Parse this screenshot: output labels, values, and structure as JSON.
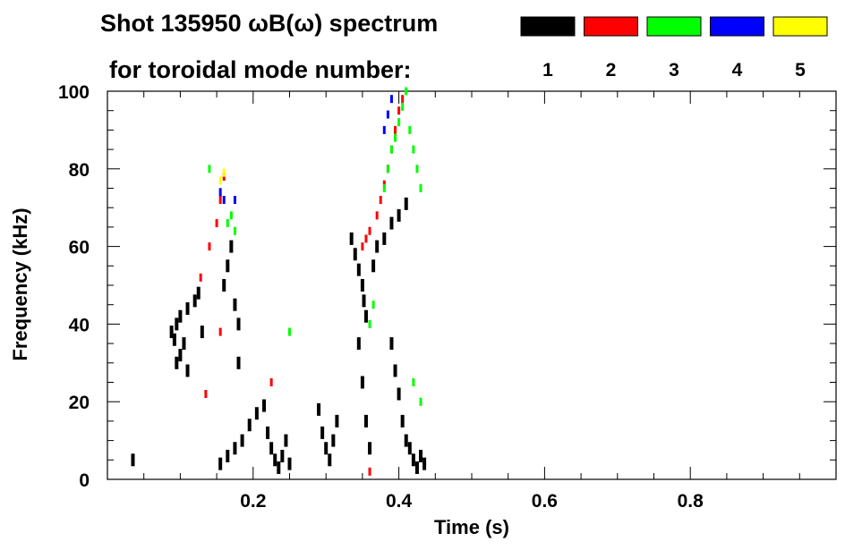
{
  "chart_data": {
    "type": "heatmap",
    "title_line1": "Shot 135950 ωB(ω) spectrum",
    "title_line2": "for toroidal mode number:",
    "xlabel": "Time (s)",
    "ylabel": "Frequency (kHz)",
    "xlim": [
      0.0,
      1.0
    ],
    "ylim": [
      0,
      100
    ],
    "xticks": [
      0.2,
      0.4,
      0.6,
      0.8
    ],
    "xtick_labels": [
      "0.2",
      "0.4",
      "0.6",
      "0.8"
    ],
    "yticks": [
      0,
      20,
      40,
      60,
      80,
      100
    ],
    "ytick_labels": [
      "0",
      "20",
      "40",
      "60",
      "80",
      "100"
    ],
    "grid": false,
    "legend_position": "top-right",
    "legend": [
      {
        "label": "1",
        "color": "#000000"
      },
      {
        "label": "2",
        "color": "#ff0000"
      },
      {
        "label": "3",
        "color": "#00ff00"
      },
      {
        "label": "4",
        "color": "#0000ff"
      },
      {
        "label": "5",
        "color": "#ffff00"
      }
    ],
    "series": [
      {
        "name": "1",
        "color": "#000000",
        "points": [
          [
            0.035,
            5
          ],
          [
            0.088,
            38
          ],
          [
            0.095,
            40
          ],
          [
            0.1,
            42
          ],
          [
            0.11,
            44
          ],
          [
            0.12,
            46
          ],
          [
            0.125,
            48
          ],
          [
            0.092,
            36
          ],
          [
            0.105,
            35
          ],
          [
            0.13,
            38
          ],
          [
            0.095,
            30
          ],
          [
            0.1,
            32
          ],
          [
            0.11,
            28
          ],
          [
            0.155,
            4
          ],
          [
            0.165,
            6
          ],
          [
            0.175,
            8
          ],
          [
            0.185,
            10
          ],
          [
            0.195,
            14
          ],
          [
            0.205,
            17
          ],
          [
            0.215,
            19
          ],
          [
            0.16,
            50
          ],
          [
            0.165,
            55
          ],
          [
            0.17,
            60
          ],
          [
            0.175,
            45
          ],
          [
            0.18,
            40
          ],
          [
            0.18,
            30
          ],
          [
            0.22,
            12
          ],
          [
            0.225,
            8
          ],
          [
            0.23,
            5
          ],
          [
            0.235,
            3
          ],
          [
            0.24,
            6
          ],
          [
            0.245,
            10
          ],
          [
            0.25,
            4
          ],
          [
            0.29,
            18
          ],
          [
            0.295,
            12
          ],
          [
            0.3,
            8
          ],
          [
            0.305,
            5
          ],
          [
            0.31,
            10
          ],
          [
            0.315,
            15
          ],
          [
            0.335,
            62
          ],
          [
            0.34,
            58
          ],
          [
            0.345,
            54
          ],
          [
            0.35,
            50
          ],
          [
            0.352,
            46
          ],
          [
            0.355,
            42
          ],
          [
            0.345,
            35
          ],
          [
            0.35,
            25
          ],
          [
            0.355,
            15
          ],
          [
            0.36,
            8
          ],
          [
            0.365,
            55
          ],
          [
            0.37,
            60
          ],
          [
            0.38,
            62
          ],
          [
            0.39,
            66
          ],
          [
            0.4,
            68
          ],
          [
            0.41,
            71
          ],
          [
            0.39,
            35
          ],
          [
            0.395,
            28
          ],
          [
            0.4,
            22
          ],
          [
            0.405,
            15
          ],
          [
            0.41,
            10
          ],
          [
            0.415,
            8
          ],
          [
            0.42,
            5
          ],
          [
            0.425,
            3
          ],
          [
            0.43,
            6
          ],
          [
            0.435,
            4
          ]
        ]
      },
      {
        "name": "2",
        "color": "#ff0000",
        "points": [
          [
            0.14,
            60
          ],
          [
            0.15,
            66
          ],
          [
            0.155,
            72
          ],
          [
            0.16,
            78
          ],
          [
            0.128,
            52
          ],
          [
            0.135,
            22
          ],
          [
            0.225,
            25
          ],
          [
            0.155,
            38
          ],
          [
            0.35,
            60
          ],
          [
            0.355,
            62
          ],
          [
            0.36,
            64
          ],
          [
            0.37,
            68
          ],
          [
            0.375,
            72
          ],
          [
            0.38,
            76
          ],
          [
            0.385,
            80
          ],
          [
            0.39,
            85
          ],
          [
            0.395,
            90
          ],
          [
            0.4,
            95
          ],
          [
            0.405,
            98
          ],
          [
            0.36,
            2
          ]
        ]
      },
      {
        "name": "3",
        "color": "#00ff00",
        "points": [
          [
            0.14,
            80
          ],
          [
            0.165,
            66
          ],
          [
            0.17,
            68
          ],
          [
            0.175,
            64
          ],
          [
            0.25,
            38
          ],
          [
            0.36,
            40
          ],
          [
            0.365,
            45
          ],
          [
            0.38,
            75
          ],
          [
            0.385,
            80
          ],
          [
            0.39,
            85
          ],
          [
            0.395,
            88
          ],
          [
            0.4,
            92
          ],
          [
            0.405,
            96
          ],
          [
            0.41,
            100
          ],
          [
            0.415,
            90
          ],
          [
            0.42,
            85
          ],
          [
            0.425,
            80
          ],
          [
            0.43,
            75
          ],
          [
            0.42,
            25
          ],
          [
            0.43,
            20
          ]
        ]
      },
      {
        "name": "4",
        "color": "#0000ff",
        "points": [
          [
            0.155,
            74
          ],
          [
            0.16,
            72
          ],
          [
            0.175,
            72
          ],
          [
            0.38,
            90
          ],
          [
            0.385,
            94
          ],
          [
            0.39,
            98
          ]
        ]
      },
      {
        "name": "5",
        "color": "#ffff00",
        "points": [
          [
            0.155,
            77
          ],
          [
            0.16,
            79
          ]
        ]
      }
    ]
  }
}
